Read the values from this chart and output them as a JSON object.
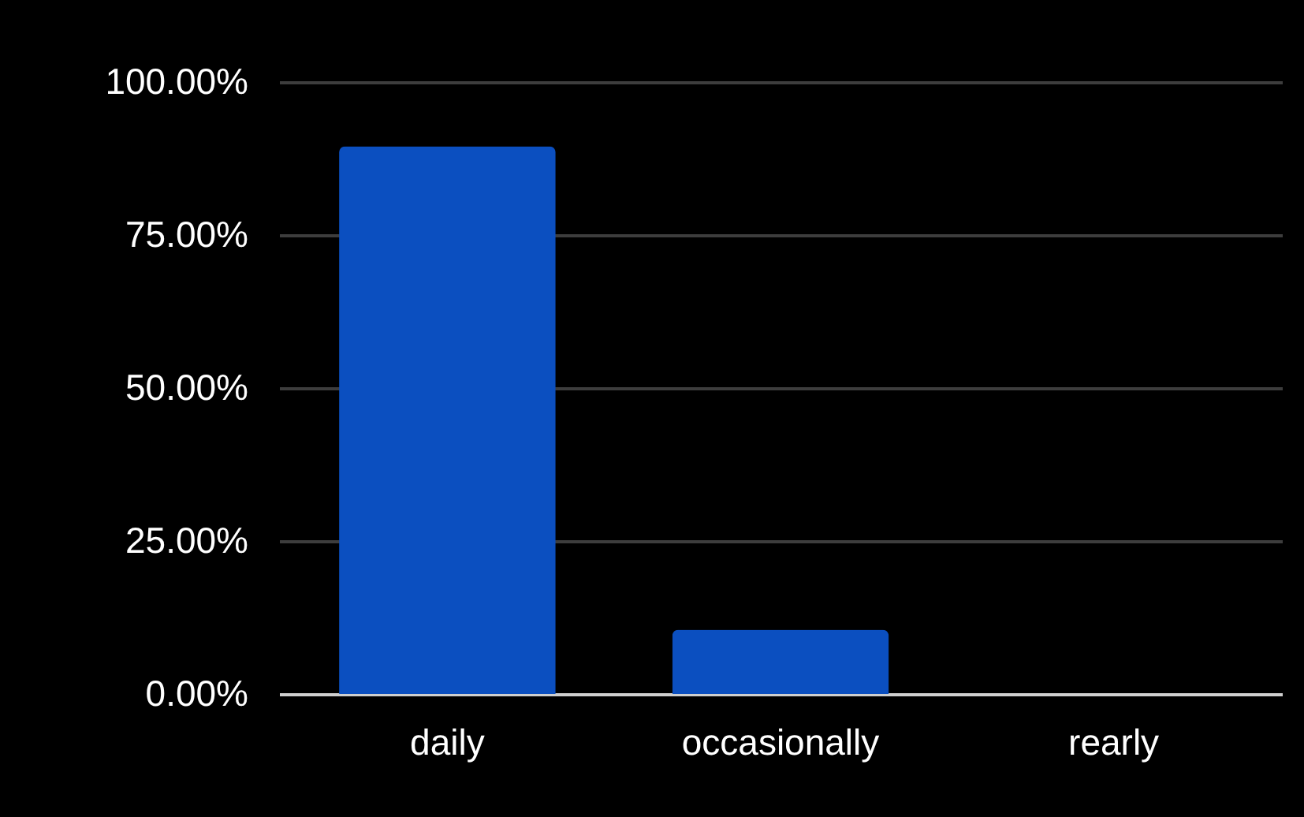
{
  "chart_data": {
    "type": "bar",
    "categories": [
      "daily",
      "occasionally",
      "rearly"
    ],
    "values": [
      89.5,
      10.5,
      0
    ],
    "color": "#0b4fc0",
    "ylim": [
      0,
      100
    ],
    "yticks": [
      {
        "value": 0,
        "label": "0.00%"
      },
      {
        "value": 25,
        "label": "25.00%"
      },
      {
        "value": 50,
        "label": "50.00%"
      },
      {
        "value": 75,
        "label": "75.00%"
      },
      {
        "value": 100,
        "label": "100.00%"
      }
    ],
    "grid": "y"
  }
}
